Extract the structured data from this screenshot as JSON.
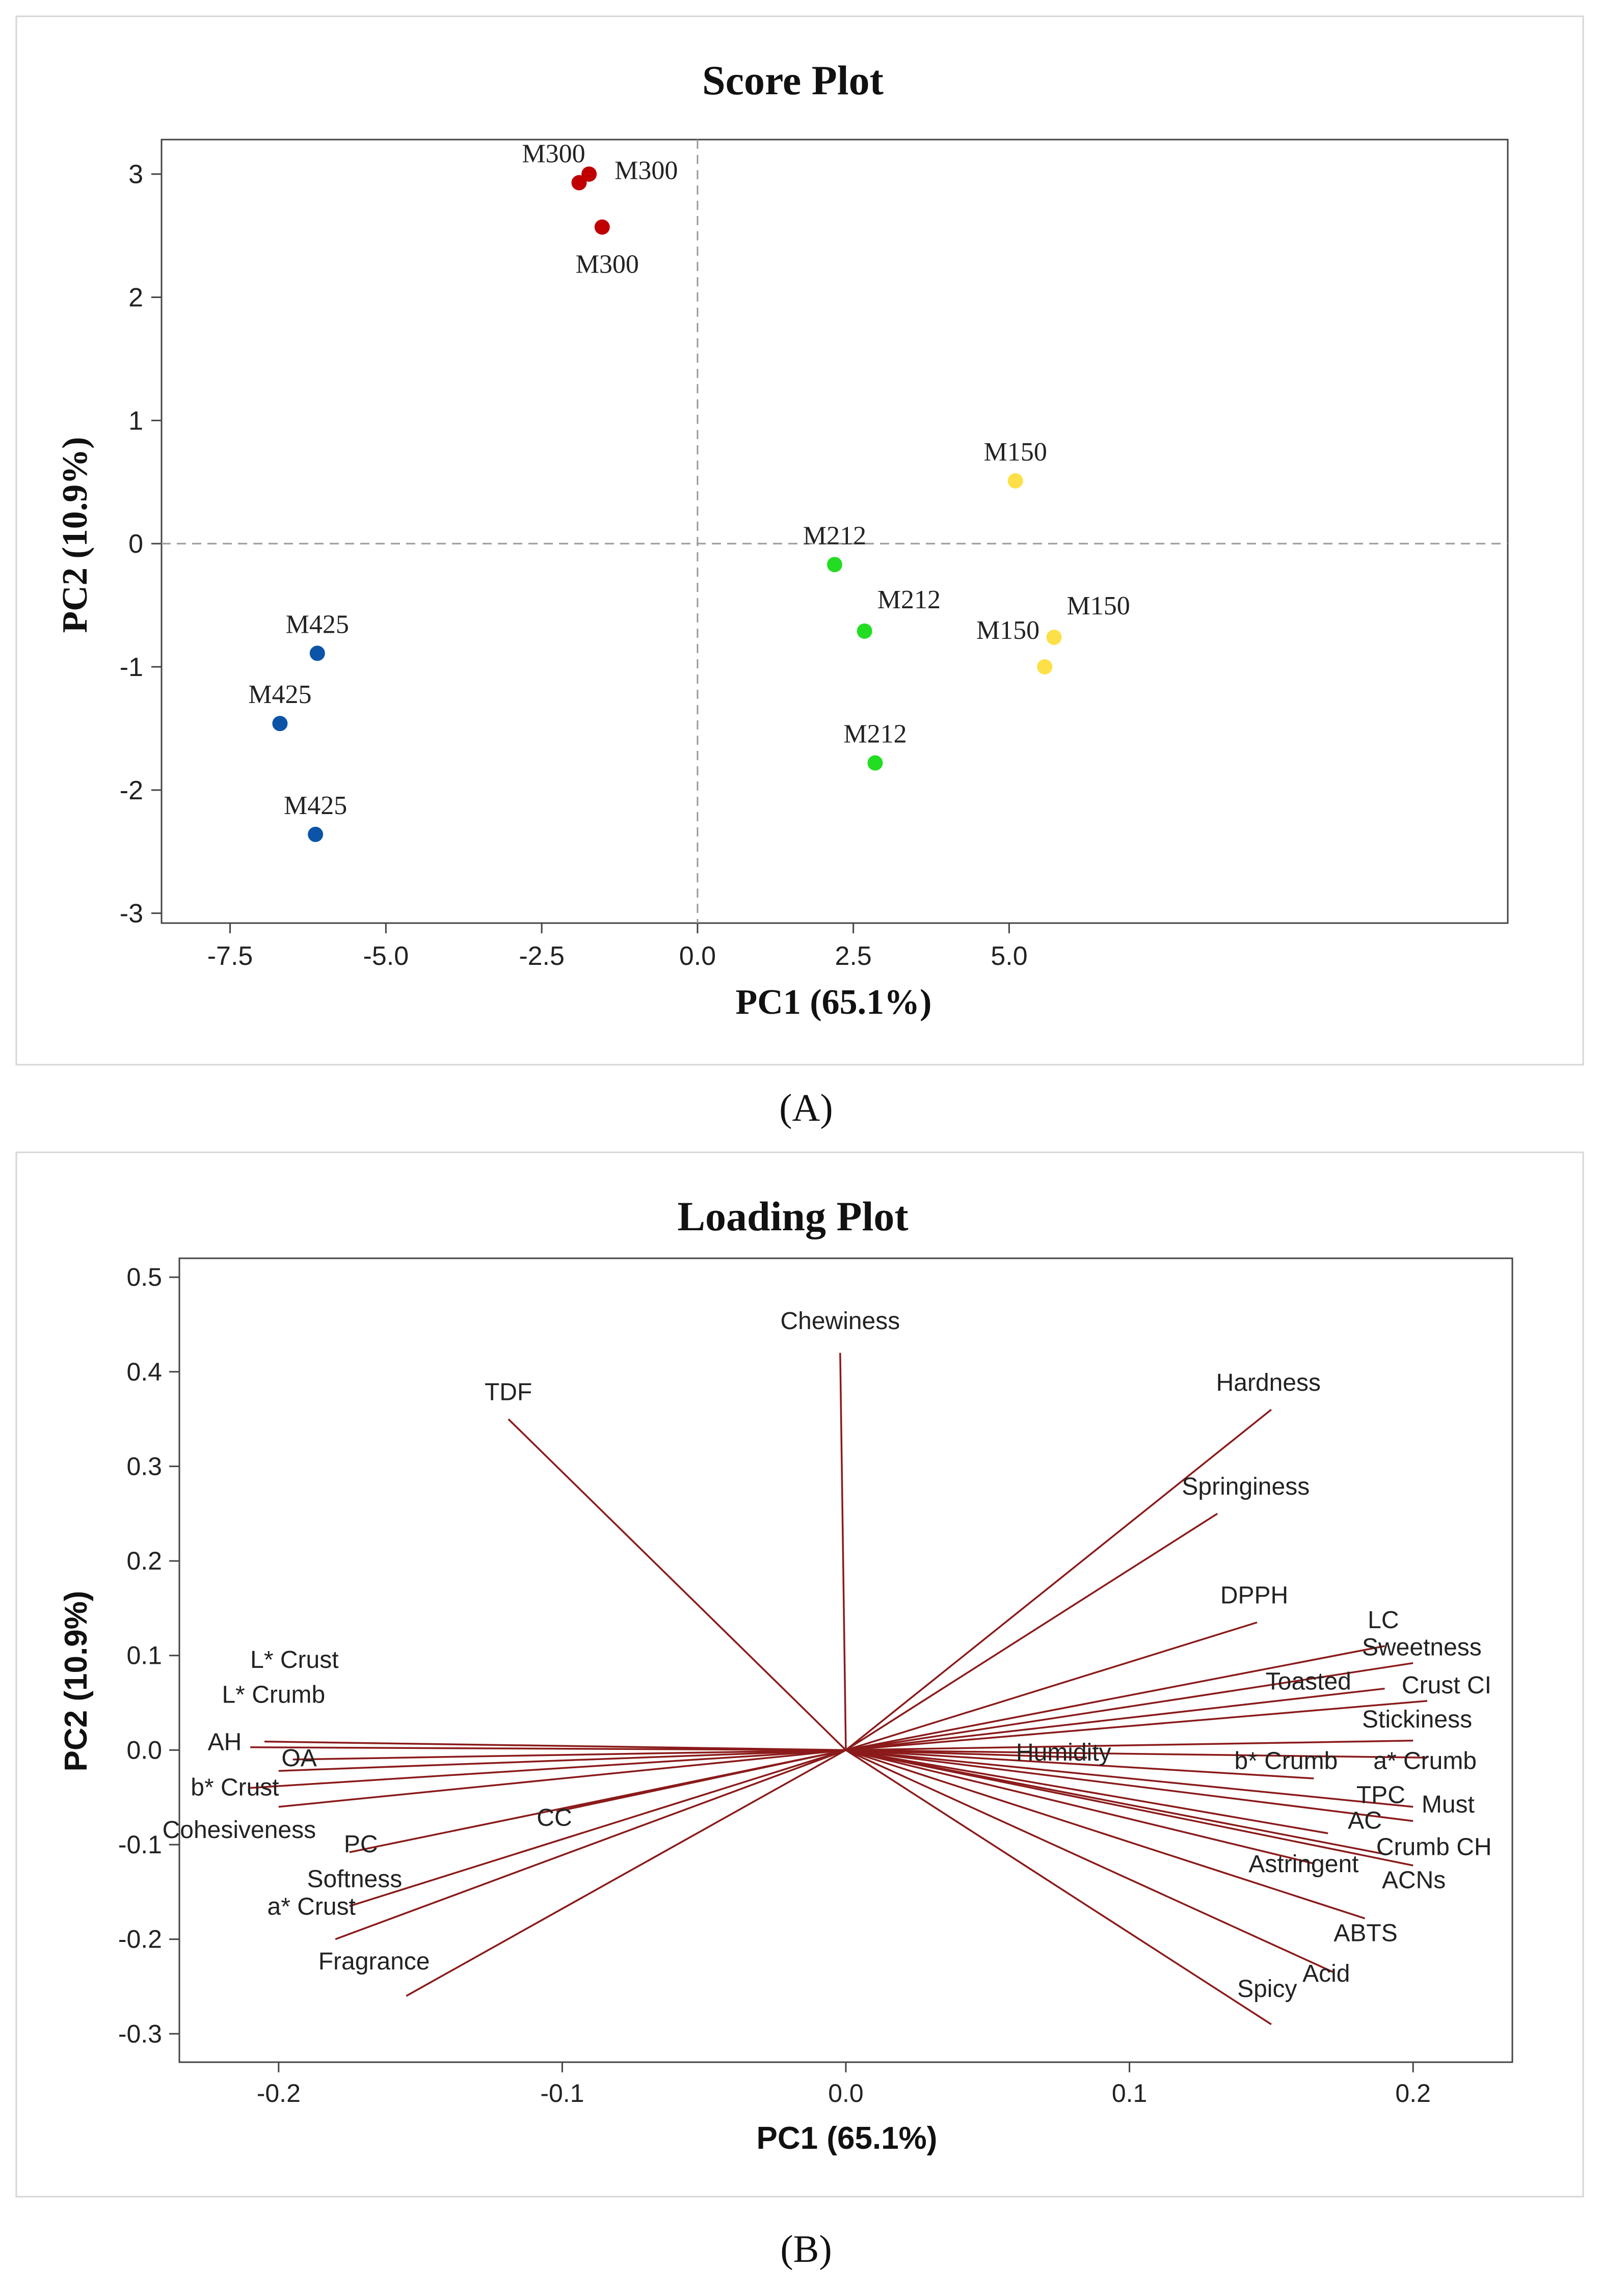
{
  "chart_data": [
    {
      "panel": "(A)",
      "type": "scatter",
      "title": "Score Plot",
      "xlabel": "PC1 (65.1%)",
      "ylabel": "PC2 (10.9%)",
      "xlim": [
        -8.6,
        13.0
      ],
      "ylim": [
        -3.08,
        3.28
      ],
      "xticks": [
        -7.5,
        -5.0,
        -2.5,
        0.0,
        2.5,
        5.0
      ],
      "xtick_labels": [
        "-7.5",
        "-5.0",
        "-2.5",
        "0.0",
        "2.5",
        "5.0"
      ],
      "yticks": [
        -3,
        -2,
        -1,
        0,
        1,
        2,
        3
      ],
      "ytick_labels": [
        "-3",
        "-2",
        "-1",
        "0",
        "1",
        "2",
        "3"
      ],
      "reference_lines": {
        "x": 0,
        "y": 0,
        "style": "dashed"
      },
      "series": [
        {
          "name": "M300",
          "color": "#c00000",
          "points": [
            {
              "x": -1.9,
              "y": 2.93,
              "label": "M300",
              "anchor": "above-left"
            },
            {
              "x": -1.74,
              "y": 3.0,
              "label": "M300",
              "anchor": "right"
            },
            {
              "x": -1.53,
              "y": 2.57,
              "label": "M300",
              "anchor": "below"
            }
          ]
        },
        {
          "name": "M150",
          "color": "#fde047",
          "points": [
            {
              "x": 5.1,
              "y": 0.51,
              "label": "M150",
              "anchor": "above"
            },
            {
              "x": 5.72,
              "y": -0.76,
              "label": "M150",
              "anchor": "above-right"
            },
            {
              "x": 5.57,
              "y": -1.0,
              "label": "M150",
              "anchor": "above-left"
            }
          ]
        },
        {
          "name": "M212",
          "color": "#22dd22",
          "points": [
            {
              "x": 2.2,
              "y": -0.17,
              "label": "M212",
              "anchor": "above"
            },
            {
              "x": 2.68,
              "y": -0.71,
              "label": "M212",
              "anchor": "above-right"
            },
            {
              "x": 2.85,
              "y": -1.78,
              "label": "M212",
              "anchor": "above"
            }
          ]
        },
        {
          "name": "M425",
          "color": "#0b54a8",
          "points": [
            {
              "x": -6.1,
              "y": -0.89,
              "label": "M425",
              "anchor": "above"
            },
            {
              "x": -6.7,
              "y": -1.46,
              "label": "M425",
              "anchor": "above"
            },
            {
              "x": -6.13,
              "y": -2.36,
              "label": "M425",
              "anchor": "above"
            }
          ]
        }
      ]
    },
    {
      "panel": "(B)",
      "type": "line",
      "subtype": "loading-vectors",
      "title": "Loading Plot",
      "xlabel": "PC1 (65.1%)",
      "ylabel": "PC2 (10.9%)",
      "xlim": [
        -0.235,
        0.235
      ],
      "ylim": [
        -0.33,
        0.52
      ],
      "xticks": [
        -0.2,
        -0.1,
        0.0,
        0.1,
        0.2
      ],
      "xtick_labels": [
        "-0.2",
        "-0.1",
        "0.0",
        "0.1",
        "0.2"
      ],
      "yticks": [
        -0.3,
        -0.2,
        -0.1,
        0.0,
        0.1,
        0.2,
        0.3,
        0.4,
        0.5
      ],
      "ytick_labels": [
        "-0.3",
        "-0.2",
        "-0.1",
        "0.0",
        "0.1",
        "0.2",
        "0.3",
        "0.4",
        "0.5"
      ],
      "vector_color": "#8b1a1a",
      "vectors": [
        {
          "name": "Chewiness",
          "x": -0.002,
          "y": 0.42,
          "lx": -0.002,
          "ly": 0.445,
          "anchor": "middle"
        },
        {
          "name": "TDF",
          "x": -0.119,
          "y": 0.35,
          "lx": -0.119,
          "ly": 0.37,
          "anchor": "middle"
        },
        {
          "name": "Hardness",
          "x": 0.15,
          "y": 0.36,
          "lx": 0.149,
          "ly": 0.38,
          "anchor": "middle"
        },
        {
          "name": "Springiness",
          "x": 0.131,
          "y": 0.25,
          "lx": 0.141,
          "ly": 0.27,
          "anchor": "middle"
        },
        {
          "name": "DPPH",
          "x": 0.145,
          "y": 0.135,
          "lx": 0.144,
          "ly": 0.155,
          "anchor": "middle"
        },
        {
          "name": "LC",
          "x": 0.19,
          "y": 0.11,
          "lx": 0.184,
          "ly": 0.129,
          "anchor": "start"
        },
        {
          "name": "Sweetness",
          "x": 0.2,
          "y": 0.092,
          "lx": 0.182,
          "ly": 0.1,
          "anchor": "start"
        },
        {
          "name": "Toasted",
          "x": 0.19,
          "y": 0.065,
          "lx": 0.148,
          "ly": 0.064,
          "anchor": "start"
        },
        {
          "name": "Crust CI",
          "x": 0.205,
          "y": 0.052,
          "lx": 0.196,
          "ly": 0.06,
          "anchor": "start"
        },
        {
          "name": "Stickiness",
          "x": 0.2,
          "y": 0.01,
          "lx": 0.182,
          "ly": 0.024,
          "anchor": "start"
        },
        {
          "name": "Humidity",
          "x": 0.085,
          "y": -0.008,
          "lx": 0.06,
          "ly": -0.011,
          "anchor": "start"
        },
        {
          "name": "b* Crumb",
          "x": 0.165,
          "y": -0.03,
          "lx": 0.137,
          "ly": -0.02,
          "anchor": "start"
        },
        {
          "name": "a* Crumb",
          "x": 0.205,
          "y": -0.008,
          "lx": 0.186,
          "ly": -0.02,
          "anchor": "start"
        },
        {
          "name": "TPC",
          "x": 0.2,
          "y": -0.06,
          "lx": 0.18,
          "ly": -0.056,
          "anchor": "start"
        },
        {
          "name": "Must",
          "x": 0.2,
          "y": -0.075,
          "lx": 0.203,
          "ly": -0.066,
          "anchor": "start"
        },
        {
          "name": "AC",
          "x": 0.17,
          "y": -0.088,
          "lx": 0.177,
          "ly": -0.083,
          "anchor": "start"
        },
        {
          "name": "Crumb CH",
          "x": 0.19,
          "y": -0.11,
          "lx": 0.187,
          "ly": -0.111,
          "anchor": "start"
        },
        {
          "name": "Astringent",
          "x": 0.165,
          "y": -0.12,
          "lx": 0.142,
          "ly": -0.129,
          "anchor": "start"
        },
        {
          "name": "ACNs",
          "x": 0.2,
          "y": -0.122,
          "lx": 0.189,
          "ly": -0.146,
          "anchor": "start"
        },
        {
          "name": "ABTS",
          "x": 0.183,
          "y": -0.178,
          "lx": 0.172,
          "ly": -0.202,
          "anchor": "start"
        },
        {
          "name": "Acid",
          "x": 0.172,
          "y": -0.235,
          "lx": 0.161,
          "ly": -0.245,
          "anchor": "start"
        },
        {
          "name": "Spicy",
          "x": 0.15,
          "y": -0.29,
          "lx": 0.138,
          "ly": -0.261,
          "anchor": "start"
        },
        {
          "name": "L* Crust",
          "x": -0.205,
          "y": 0.009,
          "lx": -0.21,
          "ly": 0.087,
          "anchor": "start"
        },
        {
          "name": "L* Crumb",
          "x": -0.21,
          "y": 0.003,
          "lx": -0.22,
          "ly": 0.05,
          "anchor": "start"
        },
        {
          "name": "AH",
          "x": -0.195,
          "y": -0.01,
          "lx": -0.225,
          "ly": 0.0,
          "anchor": "start"
        },
        {
          "name": "OA",
          "x": -0.2,
          "y": -0.022,
          "lx": -0.199,
          "ly": -0.017,
          "anchor": "start"
        },
        {
          "name": "b* Crust",
          "x": -0.21,
          "y": -0.04,
          "lx": -0.231,
          "ly": -0.048,
          "anchor": "start"
        },
        {
          "name": "Cohesiveness",
          "x": -0.2,
          "y": -0.06,
          "lx": -0.241,
          "ly": -0.093,
          "anchor": "start"
        },
        {
          "name": "PC",
          "x": -0.175,
          "y": -0.108,
          "lx": -0.177,
          "ly": -0.108,
          "anchor": "start"
        },
        {
          "name": "Softness",
          "x": -0.175,
          "y": -0.165,
          "lx": -0.19,
          "ly": -0.145,
          "anchor": "start"
        },
        {
          "name": "a* Crust",
          "x": -0.18,
          "y": -0.2,
          "lx": -0.204,
          "ly": -0.174,
          "anchor": "start"
        },
        {
          "name": "CC",
          "x": -0.102,
          "y": -0.065,
          "lx": -0.109,
          "ly": -0.08,
          "anchor": "start"
        },
        {
          "name": "Fragrance",
          "x": -0.155,
          "y": -0.26,
          "lx": -0.186,
          "ly": -0.232,
          "anchor": "start"
        }
      ]
    }
  ],
  "captions": {
    "a": "(A)",
    "b": "(B)"
  }
}
